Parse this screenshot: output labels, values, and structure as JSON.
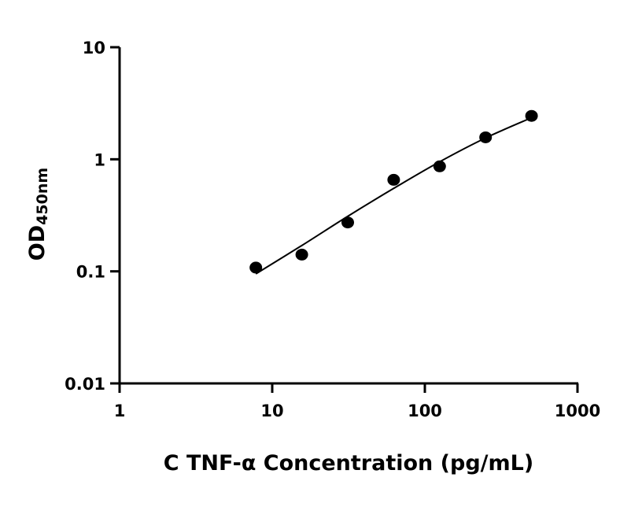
{
  "chart_data": {
    "type": "scatter",
    "title": "",
    "xlabel": "C TNF-α Concentration (pg/mL)",
    "ylabel_main": "OD",
    "ylabel_sub": "450nm",
    "xscale": "log",
    "yscale": "log",
    "xlim": [
      1,
      1000
    ],
    "ylim": [
      0.01,
      10
    ],
    "xticks": [
      1,
      10,
      100,
      1000
    ],
    "xtick_labels": [
      "1",
      "10",
      "100",
      "1000"
    ],
    "yticks": [
      0.01,
      0.1,
      1,
      10
    ],
    "ytick_labels": [
      "0.01",
      "0.1",
      "1",
      "10"
    ],
    "grid": false,
    "points": {
      "x": [
        7.8125,
        15.625,
        31.25,
        62.5,
        125,
        250,
        500
      ],
      "y": [
        0.108,
        0.141,
        0.273,
        0.656,
        0.865,
        1.57,
        2.44
      ]
    },
    "fit_curve": {
      "x": [
        7.8125,
        15.625,
        31.25,
        62.5,
        125,
        250,
        500
      ],
      "y": [
        0.095,
        0.17,
        0.31,
        0.55,
        0.95,
        1.55,
        2.35
      ]
    },
    "colors": {
      "points": "#000000",
      "line": "#000000",
      "axes": "#000000"
    }
  }
}
